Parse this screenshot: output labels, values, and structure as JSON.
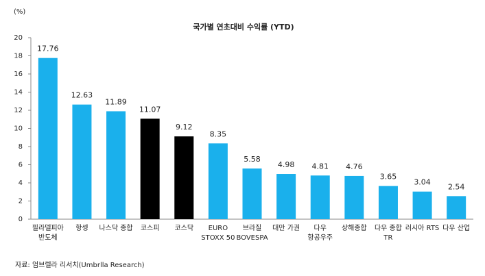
{
  "chart_data": {
    "type": "bar",
    "title": "국가별 연초대비 수익률 (YTD)",
    "y_unit": "(%)",
    "categories": [
      [
        "필라델피아",
        "반도체"
      ],
      [
        "항셍"
      ],
      [
        "나스닥 종합"
      ],
      [
        "코스피"
      ],
      [
        "코스닥"
      ],
      [
        "EURO",
        "STOXX 50"
      ],
      [
        "브라질",
        "BOVESPA"
      ],
      [
        "대만 가권"
      ],
      [
        "다우",
        "항공우주"
      ],
      [
        "상해종합"
      ],
      [
        "다우 종합",
        "TR"
      ],
      [
        "러시아 RTS"
      ],
      [
        "다우 산업"
      ]
    ],
    "values": [
      17.76,
      12.63,
      11.89,
      11.07,
      9.12,
      8.35,
      5.58,
      4.98,
      4.81,
      4.76,
      3.65,
      3.04,
      2.54
    ],
    "colors": [
      "#1ab0ec",
      "#1ab0ec",
      "#1ab0ec",
      "#000000",
      "#000000",
      "#1ab0ec",
      "#1ab0ec",
      "#1ab0ec",
      "#1ab0ec",
      "#1ab0ec",
      "#1ab0ec",
      "#1ab0ec",
      "#1ab0ec"
    ],
    "ylim": [
      0,
      20
    ],
    "yticks": [
      0,
      2,
      4,
      6,
      8,
      10,
      12,
      14,
      16,
      18,
      20
    ],
    "source": "자료: 엄브렐라 리서치(Umbrlla Research)"
  }
}
